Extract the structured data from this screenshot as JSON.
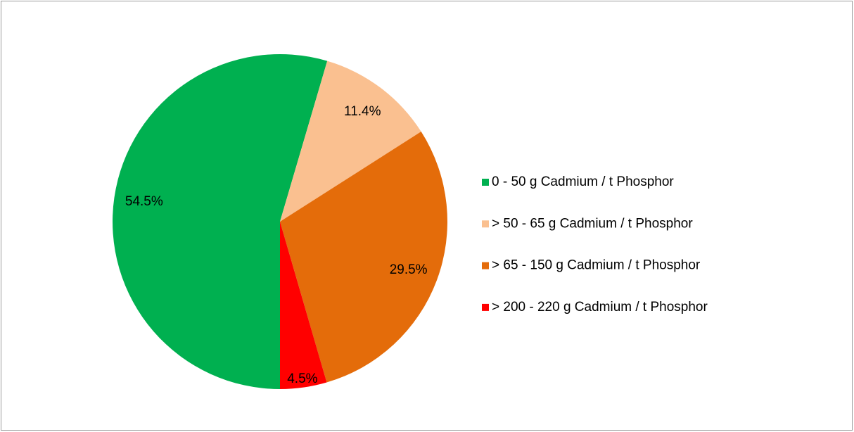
{
  "chart_data": {
    "type": "pie",
    "categories": [
      "0 - 50 g Cadmium / t Phosphor",
      "> 50 - 65 g Cadmium / t Phosphor",
      "> 65 - 150 g Cadmium / t Phosphor",
      "> 200 - 220 g Cadmium / t Phosphor"
    ],
    "values": [
      54.5,
      11.4,
      29.5,
      4.5
    ],
    "value_labels": [
      "54.5%",
      "11.4%",
      "29.5%",
      "4.5%"
    ],
    "colors": [
      "#00b050",
      "#fac090",
      "#e46c0a",
      "#ff0000"
    ],
    "legend": "right"
  }
}
